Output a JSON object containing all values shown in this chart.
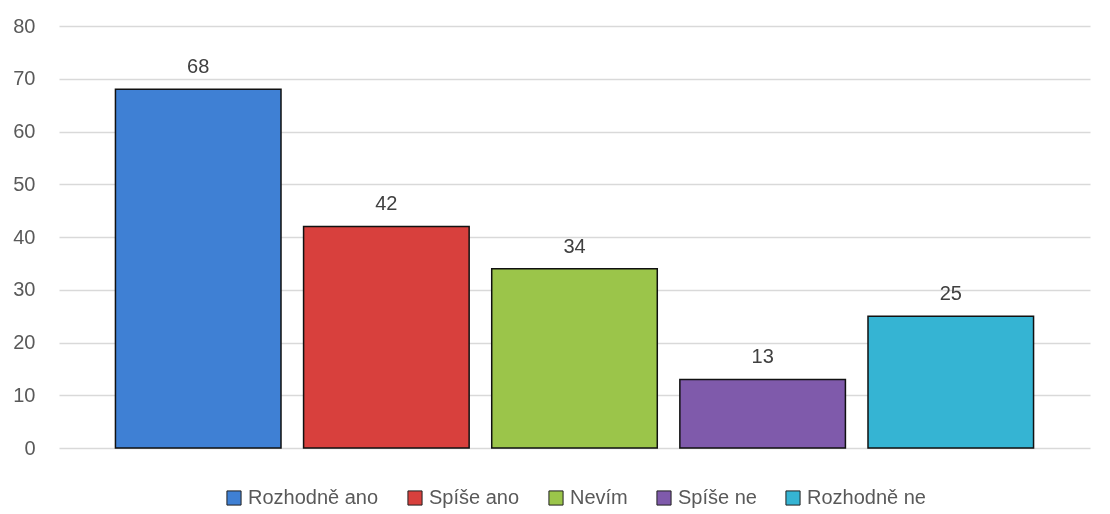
{
  "chart_data": {
    "type": "bar",
    "categories": [
      null,
      null,
      null,
      null,
      null
    ],
    "series": [
      {
        "name": "Rozhodně ano",
        "color": "#3f80d4",
        "values": [
          68,
          null,
          null,
          null,
          null
        ]
      },
      {
        "name": "Spíše ano",
        "color": "#d8403d",
        "values": [
          null,
          42,
          null,
          null,
          null
        ]
      },
      {
        "name": "Nevím",
        "color": "#9bc54a",
        "values": [
          null,
          null,
          34,
          null,
          null
        ]
      },
      {
        "name": "Spíše ne",
        "color": "#7f5aab",
        "values": [
          null,
          null,
          null,
          13,
          null
        ]
      },
      {
        "name": "Rozhodně ne",
        "color": "#35b4d3",
        "values": [
          null,
          null,
          null,
          null,
          25
        ]
      }
    ],
    "ylim": [
      0,
      80
    ],
    "yticks": [
      0,
      10,
      20,
      30,
      40,
      50,
      60,
      70,
      80
    ],
    "grid": "y",
    "legend": "bottom",
    "tick_labels": "y",
    "data_labels": true
  }
}
